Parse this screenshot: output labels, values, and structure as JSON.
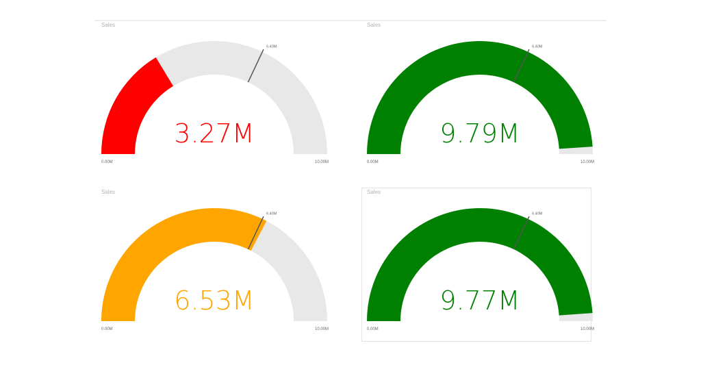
{
  "chart_data": [
    {
      "type": "gauge",
      "title": "Sales",
      "value": 3.27,
      "value_label": "3.27M",
      "min": 0,
      "max": 10,
      "min_label": "0.00M",
      "max_label": "10.00M",
      "target": 6.4,
      "target_label": "6.40M",
      "color": "#ff0000"
    },
    {
      "type": "gauge",
      "title": "Sales",
      "value": 9.79,
      "value_label": "9.79M",
      "min": 0,
      "max": 10,
      "min_label": "0.00M",
      "max_label": "10.00M",
      "target": 6.4,
      "target_label": "6.40M",
      "color": "#008000"
    },
    {
      "type": "gauge",
      "title": "Sales",
      "value": 6.53,
      "value_label": "6.53M",
      "min": 0,
      "max": 10,
      "min_label": "0.00M",
      "max_label": "10.00M",
      "target": 6.4,
      "target_label": "6.40M",
      "color": "#ffa500"
    },
    {
      "type": "gauge",
      "title": "Sales",
      "value": 9.77,
      "value_label": "9.77M",
      "min": 0,
      "max": 10,
      "min_label": "0.00M",
      "max_label": "10.00M",
      "target": 6.4,
      "target_label": "6.40M",
      "color": "#008000"
    }
  ],
  "colors": {
    "track": "#e8e8e8",
    "target_line": "#555555"
  },
  "selected_gauge": 3
}
